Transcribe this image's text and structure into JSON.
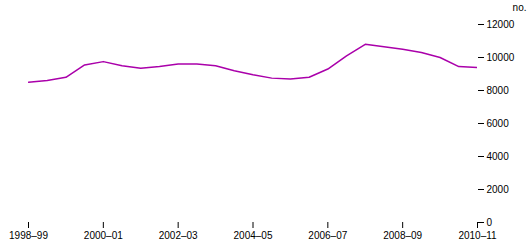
{
  "chart_data": {
    "type": "line",
    "x": [
      0,
      0.5,
      1,
      1.5,
      2,
      2.5,
      3,
      3.5,
      4,
      4.5,
      5,
      5.5,
      6,
      6.5,
      7,
      7.5,
      8,
      8.5,
      9,
      9.5,
      10,
      10.5,
      11,
      11.5,
      12
    ],
    "values": [
      8500,
      8600,
      8800,
      9550,
      9750,
      9500,
      9350,
      9450,
      9600,
      9600,
      9500,
      9200,
      8950,
      8750,
      8700,
      8800,
      9300,
      10100,
      10800,
      10650,
      10500,
      10300,
      10000,
      9450,
      9400
    ],
    "color": "#aa00aa",
    "ylabel": "no.",
    "xlim": [
      0,
      12
    ],
    "xticks": [
      {
        "value": 0,
        "label": "1998–99"
      },
      {
        "value": 2,
        "label": "2000–01"
      },
      {
        "value": 4,
        "label": "2002–03"
      },
      {
        "value": 6,
        "label": "2004–05"
      },
      {
        "value": 8,
        "label": "2006–07"
      },
      {
        "value": 10,
        "label": "2008–09"
      },
      {
        "value": 12,
        "label": "2010–11"
      }
    ],
    "ylim": [
      0,
      12000
    ],
    "yticks": [
      0,
      2000,
      4000,
      6000,
      8000,
      10000,
      12000
    ],
    "grid": false
  }
}
